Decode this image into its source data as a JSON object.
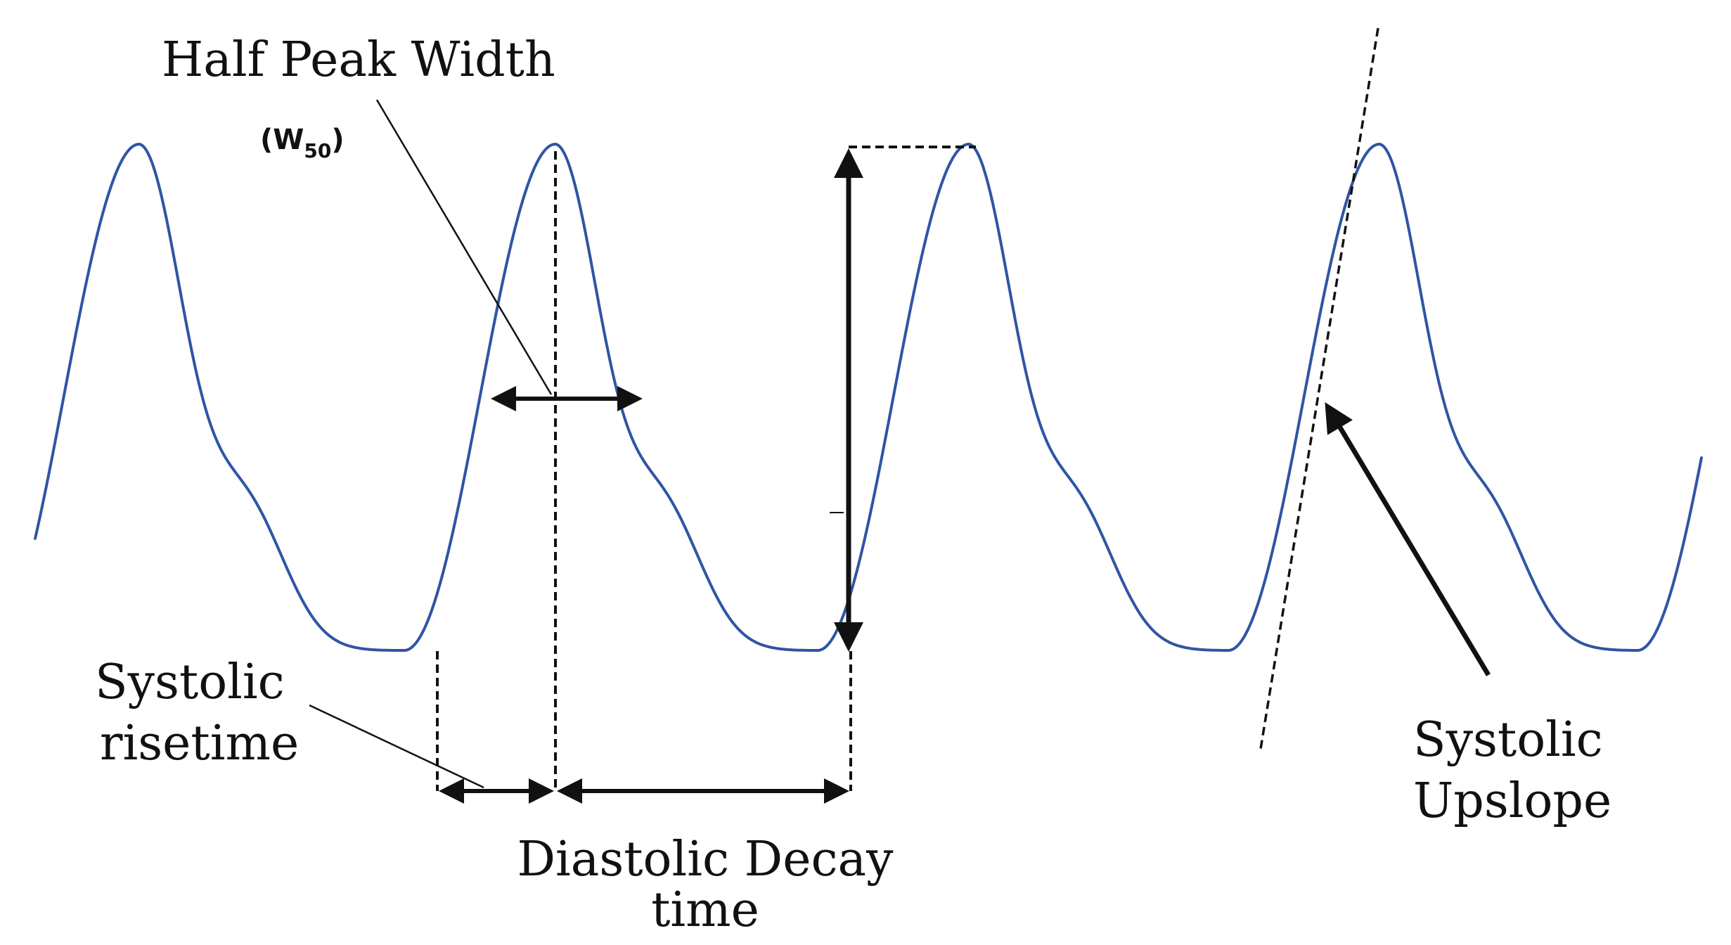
{
  "labels": {
    "half_peak_width": "Half Peak Width",
    "w50_main": "(W",
    "w50_sub": "50",
    "w50_close": ")",
    "systolic_risetime_line1": "Systolic",
    "systolic_risetime_line2": "risetime",
    "diastolic_decay_line1": "Diastolic Decay",
    "diastolic_decay_line2": "time",
    "systolic_upslope_line1": "Systolic",
    "systolic_upslope_line2": "Upslope"
  },
  "colors": {
    "waveform": "#2f55a4",
    "annotation": "#111111"
  }
}
